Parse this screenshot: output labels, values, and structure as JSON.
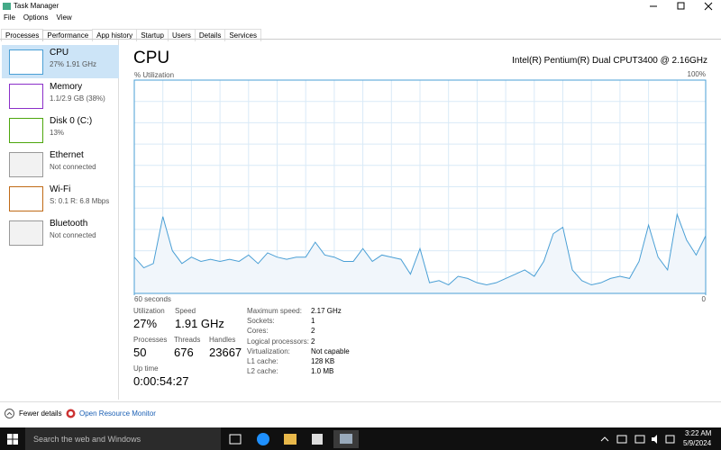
{
  "window": {
    "title": "Task Manager",
    "menu": [
      "File",
      "Options",
      "View"
    ],
    "tabs": [
      "Processes",
      "Performance",
      "App history",
      "Startup",
      "Users",
      "Details",
      "Services"
    ]
  },
  "sidebar": [
    {
      "name": "CPU",
      "detail": "27% 1.91 GHz"
    },
    {
      "name": "Memory",
      "detail": "1.1/2.9 GB (38%)"
    },
    {
      "name": "Disk 0 (C:)",
      "detail": "13%"
    },
    {
      "name": "Ethernet",
      "detail": "Not connected"
    },
    {
      "name": "Wi-Fi",
      "detail": "S: 0.1 R: 6.8 Mbps"
    },
    {
      "name": "Bluetooth",
      "detail": "Not connected"
    }
  ],
  "cpu": {
    "heading": "CPU",
    "model": "Intel(R) Pentium(R) Dual CPUT3400 @ 2.16GHz",
    "graph": {
      "y_label": "% Utilization",
      "ylim": [
        0,
        100
      ],
      "yticks": [
        {
          "value": 100,
          "label": "100%"
        }
      ],
      "xlim": [
        60,
        0
      ],
      "xticks": [
        {
          "value": 60,
          "label": "60 seconds"
        },
        0
      ],
      "values": [
        17,
        12,
        14,
        36,
        20,
        14,
        17,
        15,
        16,
        15,
        16,
        15,
        18,
        14,
        19,
        17,
        16,
        17,
        17,
        24,
        18,
        17,
        15,
        15,
        21,
        15,
        18,
        17,
        16,
        9,
        21,
        5,
        6,
        4,
        8,
        7,
        5,
        4,
        5,
        7,
        9,
        11,
        8,
        15,
        28,
        31,
        11,
        6,
        4,
        5,
        7,
        8,
        7,
        15,
        32,
        17,
        11,
        37,
        25,
        18,
        27
      ]
    },
    "stats": [
      {
        "label": "Utilization",
        "value": "27%"
      },
      {
        "label": "Speed",
        "value": "1.91 GHz"
      },
      {
        "label": "Processes",
        "value": "50"
      },
      {
        "label": "Threads",
        "value": "676"
      },
      {
        "label": "Handles",
        "value": "23667"
      },
      {
        "label": "Up time",
        "value": "0:00:54:27"
      }
    ],
    "specs": [
      {
        "label": "Maximum speed:",
        "value": "2.17 GHz"
      },
      {
        "label": "Sockets:",
        "value": "1"
      },
      {
        "label": "Cores:",
        "value": "2"
      },
      {
        "label": "Logical processors:",
        "value": "2"
      },
      {
        "label": "Virtualization:",
        "value": "Not capable"
      },
      {
        "label": "L1 cache:",
        "value": "128 KB"
      },
      {
        "label": "L2 cache:",
        "value": "1.0 MB"
      }
    ]
  },
  "footer": {
    "fewer_details": "Fewer details",
    "resource_monitor": "Open Resource Monitor"
  },
  "taskbar": {
    "search": "Search the web and Windows",
    "time": "3:22 AM",
    "date": "5/9/2024"
  }
}
